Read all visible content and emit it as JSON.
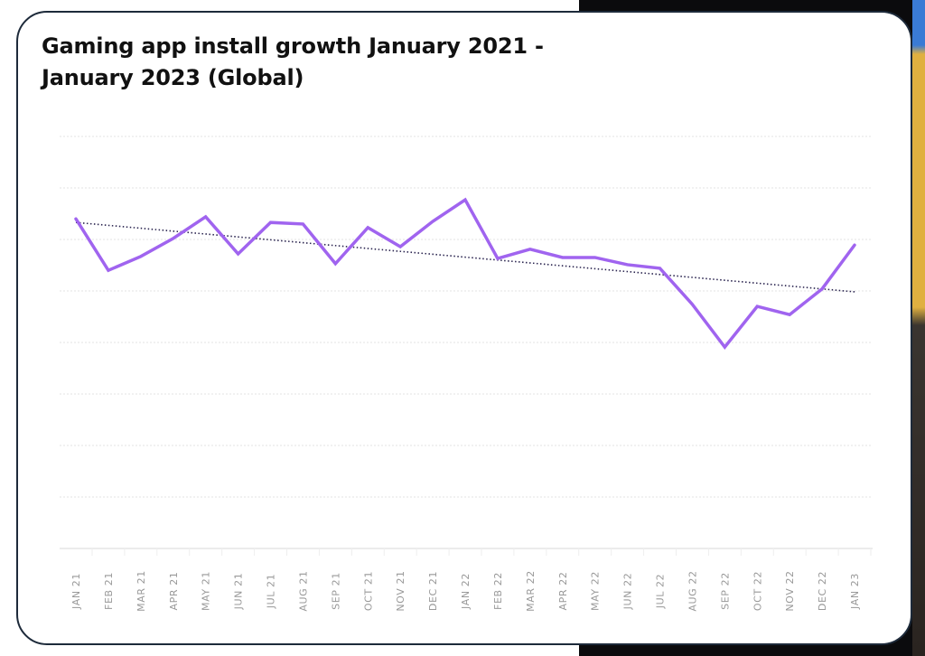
{
  "chart_data": {
    "type": "line",
    "title": "Gaming app install growth January 2021 - January 2023 (Global)",
    "xlabel": "",
    "ylabel": "",
    "y_axis_labels_shown": false,
    "ylim": [
      0,
      8
    ],
    "grid": true,
    "categories": [
      "JAN 21",
      "FEB 21",
      "MAR 21",
      "APR 21",
      "MAY 21",
      "JUN 21",
      "JUL 21",
      "AUG 21",
      "SEP 21",
      "OCT 21",
      "NOV 21",
      "DEC 21",
      "JAN 22",
      "FEB 22",
      "MAR 22",
      "APR 22",
      "MAY 22",
      "JUN 22",
      "JUL 22",
      "AUG 22",
      "SEP 22",
      "OCT 22",
      "NOV 22",
      "DEC 22",
      "JAN 23"
    ],
    "series": [
      {
        "values": [
          6.4,
          5.4,
          5.67,
          6.02,
          6.44,
          5.72,
          6.33,
          6.3,
          5.53,
          6.23,
          5.86,
          6.35,
          6.77,
          5.63,
          5.81,
          5.65,
          5.65,
          5.51,
          5.44,
          4.74,
          3.91,
          4.7,
          4.54,
          5.04,
          5.89
        ],
        "color": "#a064ef"
      }
    ],
    "trendline": {
      "start": 6.33,
      "end": 4.98,
      "style": "dotted",
      "color": "#2b2550"
    }
  }
}
